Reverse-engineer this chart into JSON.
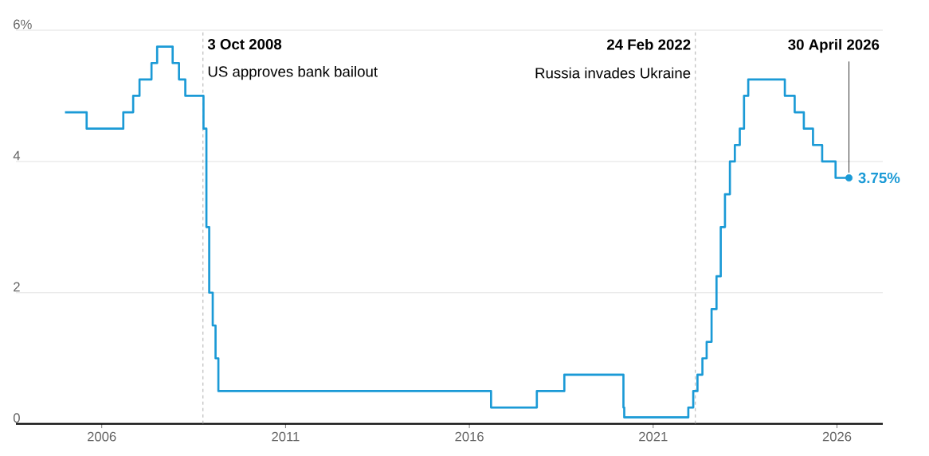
{
  "chart_data": {
    "type": "step",
    "xlim": [
      "2003-09",
      "2027-04"
    ],
    "ylim": [
      0,
      6
    ],
    "xticks": [
      "2006",
      "2011",
      "2016",
      "2021",
      "2026"
    ],
    "yticks": [
      0,
      2,
      4,
      {
        "value": 6,
        "label": "6%"
      }
    ],
    "grid": "y",
    "series": [
      {
        "color": "#1b9ad6",
        "x": [
          "2005-01",
          "2005-08-04",
          "2006-08-03",
          "2006-11-09",
          "2007-01-11",
          "2007-05-10",
          "2007-07-05",
          "2007-12-06",
          "2008-02-07",
          "2008-04-10",
          "2008-10-08",
          "2008-11-06",
          "2008-12-04",
          "2009-01-08",
          "2009-02-05",
          "2009-03-05",
          "2016-08-04",
          "2017-11-02",
          "2018-08-02",
          "2020-03-11",
          "2020-03-19",
          "2021-12-16",
          "2022-02-03",
          "2022-03-17",
          "2022-05-05",
          "2022-06-16",
          "2022-08-04",
          "2022-09-22",
          "2022-11-03",
          "2022-12-15",
          "2023-02-02",
          "2023-03-23",
          "2023-05-11",
          "2023-06-22",
          "2023-08-03",
          "2024-08-01",
          "2024-11-07",
          "2025-02-06",
          "2025-05-08",
          "2025-08-07",
          "2025-12-18",
          "2026-04-30"
        ],
        "values": [
          4.75,
          4.5,
          4.75,
          5.0,
          5.25,
          5.5,
          5.75,
          5.5,
          5.25,
          5.0,
          4.5,
          3.0,
          2.0,
          1.5,
          1.0,
          0.5,
          0.25,
          0.5,
          0.75,
          0.25,
          0.1,
          0.25,
          0.5,
          0.75,
          1.0,
          1.25,
          1.75,
          2.25,
          3.0,
          3.5,
          4.0,
          4.25,
          4.5,
          5.0,
          5.25,
          5.0,
          4.75,
          4.5,
          4.25,
          4.0,
          3.75,
          3.75
        ]
      },
      {
        "type": "scatter",
        "color": "#1b9ad6",
        "x": [
          "2026-04-30"
        ],
        "values": [
          3.75
        ],
        "value_labels": [
          "3.75%"
        ]
      }
    ],
    "ref_lines": [
      {
        "axis": "x",
        "value": "2008-10-03",
        "label": "3 Oct 2008",
        "color": "#999999",
        "line_style": "dashed"
      },
      {
        "axis": "x",
        "value": "2022-02-24",
        "label": "24 Feb 2022",
        "color": "#999999",
        "line_style": "dashed"
      }
    ],
    "annotations": [
      {
        "text": "US approves bank bailout",
        "x": "2008-10-03",
        "y": 5.35
      },
      {
        "text": "Russia invades Ukraine",
        "x": "2022-02-24",
        "y": 5.35
      },
      {
        "text": "30 April 2026",
        "x": "2026-04-30",
        "y": 3.75
      }
    ]
  }
}
